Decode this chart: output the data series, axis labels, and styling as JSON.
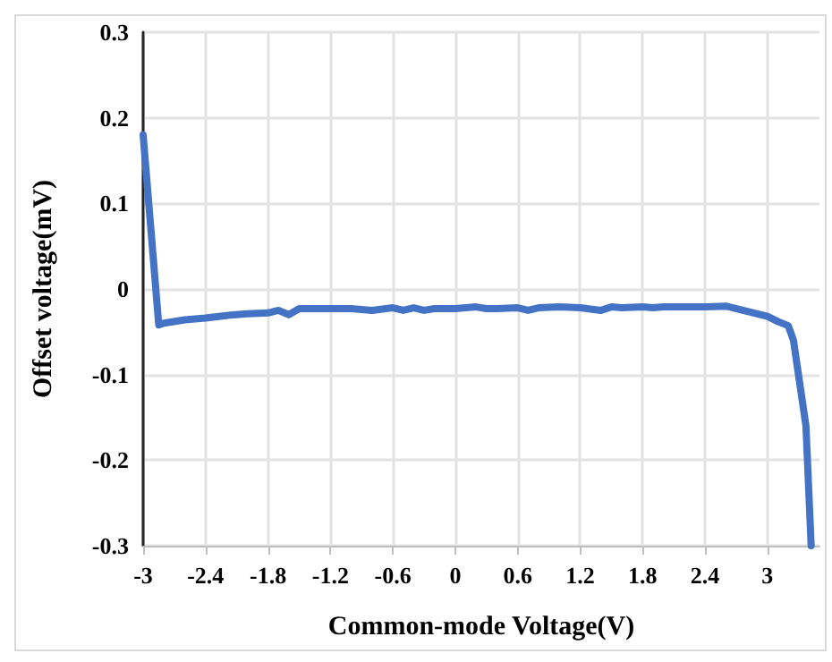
{
  "chart_data": {
    "type": "line",
    "xlabel": "Common-mode Voltage(V)",
    "ylabel": "Offset voltage(mV)",
    "x": [
      -3,
      -2.85,
      -2.8,
      -2.6,
      -2.4,
      -2.2,
      -2.0,
      -1.8,
      -1.7,
      -1.6,
      -1.5,
      -1.4,
      -1.2,
      -1.0,
      -0.8,
      -0.6,
      -0.5,
      -0.4,
      -0.3,
      -0.2,
      0,
      0.2,
      0.3,
      0.4,
      0.6,
      0.7,
      0.8,
      1.0,
      1.2,
      1.4,
      1.5,
      1.6,
      1.8,
      1.9,
      2.0,
      2.2,
      2.4,
      2.6,
      2.8,
      3.0,
      3.1,
      3.2,
      3.25,
      3.37,
      3.42
    ],
    "series": [
      {
        "color": "#4472c4",
        "values": [
          0.18,
          -0.042,
          -0.04,
          -0.036,
          -0.034,
          -0.031,
          -0.029,
          -0.028,
          -0.025,
          -0.03,
          -0.023,
          -0.023,
          -0.023,
          -0.023,
          -0.025,
          -0.022,
          -0.025,
          -0.022,
          -0.025,
          -0.023,
          -0.023,
          -0.021,
          -0.023,
          -0.023,
          -0.022,
          -0.025,
          -0.022,
          -0.021,
          -0.022,
          -0.025,
          -0.021,
          -0.022,
          -0.021,
          -0.022,
          -0.021,
          -0.021,
          -0.021,
          -0.02,
          -0.026,
          -0.032,
          -0.038,
          -0.043,
          -0.06,
          -0.16,
          -0.3
        ]
      }
    ],
    "xlim": [
      -3,
      3.5
    ],
    "xticks": [
      -3,
      -2.4,
      -1.8,
      -1.2,
      -0.6,
      0,
      0.6,
      1.2,
      1.8,
      2.4,
      3
    ],
    "ylim": [
      -0.3,
      0.3
    ],
    "yticks": [
      -0.3,
      -0.2,
      -0.1,
      0,
      0.1,
      0.2,
      0.3
    ],
    "grid": true,
    "marker": "none",
    "line_style": "solid"
  }
}
